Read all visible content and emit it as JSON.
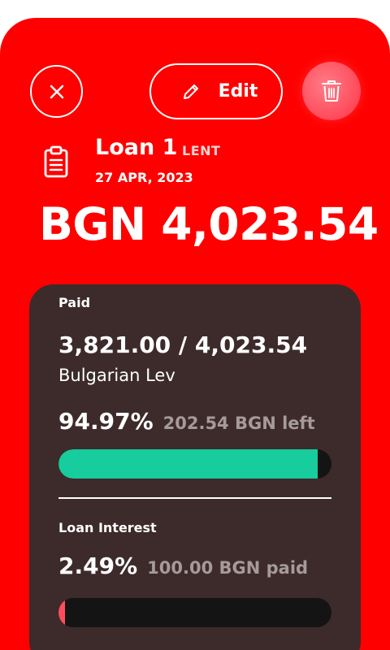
{
  "header": {
    "edit_label": "Edit"
  },
  "loan": {
    "title": "Loan 1",
    "type": "LENT",
    "date": "27 APR, 2023",
    "amount": "BGN 4,023.54"
  },
  "paid_section": {
    "label": "Paid",
    "ratio": "3,821.00 / 4,023.54",
    "currency_name": "Bulgarian Lev",
    "percent": "94.97%",
    "remaining_text": "202.54 BGN left",
    "progress_fraction": 0.9497
  },
  "interest_section": {
    "label": "Loan Interest",
    "percent": "2.49%",
    "paid_text": "100.00 BGN paid",
    "progress_fraction": 0.025
  },
  "colors": {
    "background": "#ff0000",
    "card": "#3d2b2b",
    "progress_paid": "#17cc9d",
    "progress_interest": "#ff4d5d",
    "track": "#141414"
  },
  "icons": {
    "close": "close-icon",
    "edit": "pencil-icon",
    "delete": "trash-icon",
    "loan": "clipboard-icon"
  }
}
